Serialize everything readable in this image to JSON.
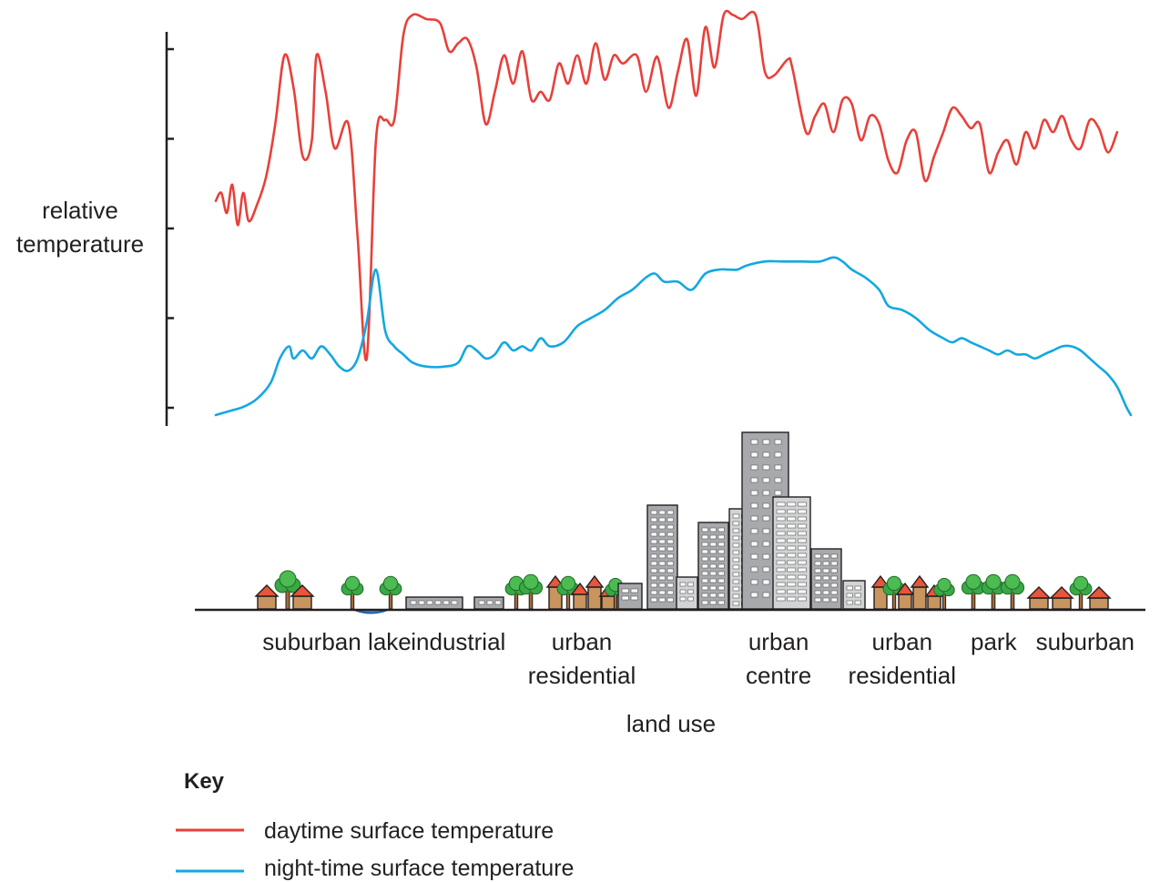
{
  "chart_data": {
    "type": "line",
    "title": "",
    "ylabel_lines": [
      "relative",
      "temperature"
    ],
    "xlabel": "land use",
    "y_axis": {
      "tick_count": 5,
      "tick_labels": "none"
    },
    "x_range": [
      0,
      100
    ],
    "y_range": [
      0,
      100
    ],
    "categories": [
      {
        "lines": [
          "suburban"
        ],
        "x": 10.5
      },
      {
        "lines": [
          "lake"
        ],
        "x": 19
      },
      {
        "lines": [
          "industrial"
        ],
        "x": 26.5
      },
      {
        "lines": [
          "urban",
          "residential"
        ],
        "x": 40
      },
      {
        "lines": [
          "urban",
          "centre"
        ],
        "x": 61.5
      },
      {
        "lines": [
          "urban",
          "residential"
        ],
        "x": 75
      },
      {
        "lines": [
          "park"
        ],
        "x": 85
      },
      {
        "lines": [
          "suburban"
        ],
        "x": 95
      }
    ],
    "series": [
      {
        "name": "daytime surface temperature",
        "color": "#e8403a",
        "points": [
          [
            0,
            53
          ],
          [
            0.6,
            55
          ],
          [
            1.2,
            50
          ],
          [
            1.8,
            57
          ],
          [
            2.4,
            47
          ],
          [
            3,
            55
          ],
          [
            3.6,
            48
          ],
          [
            4.5,
            52
          ],
          [
            5.5,
            59
          ],
          [
            6.5,
            72
          ],
          [
            7.5,
            89
          ],
          [
            8.5,
            81
          ],
          [
            9.5,
            64
          ],
          [
            10.5,
            68
          ],
          [
            11,
            89
          ],
          [
            12,
            80
          ],
          [
            13,
            66
          ],
          [
            14.5,
            72
          ],
          [
            15.5,
            44
          ],
          [
            16.5,
            14
          ],
          [
            17.5,
            68
          ],
          [
            18.5,
            73
          ],
          [
            19.5,
            73
          ],
          [
            20.5,
            94
          ],
          [
            21.5,
            99
          ],
          [
            23,
            98
          ],
          [
            24.5,
            97
          ],
          [
            25.5,
            90
          ],
          [
            26.5,
            92
          ],
          [
            27.5,
            93
          ],
          [
            28.5,
            86
          ],
          [
            29.5,
            72
          ],
          [
            30.5,
            80
          ],
          [
            31.5,
            89
          ],
          [
            32.5,
            82
          ],
          [
            33.5,
            90
          ],
          [
            34.5,
            78
          ],
          [
            35.5,
            80
          ],
          [
            36.5,
            78
          ],
          [
            37.5,
            87
          ],
          [
            38.5,
            82
          ],
          [
            39.5,
            89
          ],
          [
            40.5,
            82
          ],
          [
            41.5,
            92
          ],
          [
            42.5,
            83
          ],
          [
            43.5,
            89
          ],
          [
            44.5,
            87
          ],
          [
            46,
            89
          ],
          [
            47,
            80
          ],
          [
            48,
            88
          ],
          [
            48.5,
            87
          ],
          [
            49.5,
            76
          ],
          [
            50.5,
            85
          ],
          [
            51.5,
            93
          ],
          [
            52.5,
            79
          ],
          [
            53.5,
            96
          ],
          [
            54.5,
            86
          ],
          [
            55.5,
            99
          ],
          [
            56.5,
            99
          ],
          [
            57.5,
            98
          ],
          [
            59,
            99
          ],
          [
            60,
            85
          ],
          [
            61,
            84
          ],
          [
            62.5,
            88
          ],
          [
            63,
            86
          ],
          [
            64.5,
            70
          ],
          [
            65.5,
            74
          ],
          [
            66.5,
            77
          ],
          [
            67.5,
            70
          ],
          [
            68.5,
            78
          ],
          [
            69.5,
            77
          ],
          [
            70.5,
            68
          ],
          [
            71.5,
            74
          ],
          [
            72.5,
            72
          ],
          [
            73.5,
            63
          ],
          [
            74.5,
            60
          ],
          [
            75.5,
            68
          ],
          [
            76.5,
            70
          ],
          [
            77.5,
            58
          ],
          [
            78.5,
            64
          ],
          [
            79.5,
            70
          ],
          [
            80.5,
            76
          ],
          [
            81.5,
            74
          ],
          [
            82.5,
            71
          ],
          [
            83.5,
            72
          ],
          [
            84.5,
            60
          ],
          [
            85.5,
            65
          ],
          [
            86.5,
            68
          ],
          [
            87.5,
            62
          ],
          [
            88.5,
            70
          ],
          [
            89.5,
            66
          ],
          [
            90.5,
            73
          ],
          [
            91.5,
            70
          ],
          [
            92.5,
            74
          ],
          [
            93.5,
            68
          ],
          [
            94.5,
            66
          ],
          [
            95.5,
            73
          ],
          [
            96.5,
            71
          ],
          [
            97.5,
            65
          ],
          [
            98.5,
            70
          ]
        ]
      },
      {
        "name": "night-time surface temperature",
        "color": "#12a8e2",
        "points": [
          [
            0,
            0
          ],
          [
            1.5,
            1
          ],
          [
            3,
            2
          ],
          [
            4.5,
            4
          ],
          [
            6,
            8
          ],
          [
            7,
            14
          ],
          [
            8,
            17
          ],
          [
            8.5,
            14
          ],
          [
            9.5,
            16
          ],
          [
            10.5,
            14
          ],
          [
            11.5,
            17
          ],
          [
            12.5,
            15
          ],
          [
            13.5,
            12
          ],
          [
            14.5,
            11
          ],
          [
            15.5,
            14
          ],
          [
            16.5,
            23
          ],
          [
            17.5,
            36
          ],
          [
            18.5,
            21
          ],
          [
            19.5,
            17
          ],
          [
            20.5,
            15
          ],
          [
            21.5,
            13
          ],
          [
            23,
            12
          ],
          [
            25,
            12
          ],
          [
            26.5,
            13
          ],
          [
            27.5,
            17
          ],
          [
            28.5,
            16
          ],
          [
            29.5,
            14
          ],
          [
            30.5,
            15
          ],
          [
            31.5,
            18
          ],
          [
            32.5,
            16
          ],
          [
            33.5,
            17
          ],
          [
            34.5,
            16
          ],
          [
            35.5,
            19
          ],
          [
            36.5,
            17
          ],
          [
            38,
            18
          ],
          [
            39.5,
            22
          ],
          [
            41,
            24
          ],
          [
            42.5,
            26
          ],
          [
            44,
            29
          ],
          [
            45.5,
            31
          ],
          [
            47,
            34
          ],
          [
            48,
            35
          ],
          [
            49,
            33
          ],
          [
            50.5,
            33
          ],
          [
            52,
            31
          ],
          [
            53.5,
            35
          ],
          [
            55,
            36
          ],
          [
            56,
            36
          ],
          [
            57,
            36
          ],
          [
            58,
            37
          ],
          [
            60,
            38
          ],
          [
            62,
            38
          ],
          [
            64,
            38
          ],
          [
            66,
            38
          ],
          [
            67.5,
            39
          ],
          [
            68.5,
            38
          ],
          [
            69.5,
            36
          ],
          [
            71,
            34
          ],
          [
            72.5,
            31
          ],
          [
            73.5,
            27
          ],
          [
            75,
            26
          ],
          [
            76.5,
            24
          ],
          [
            78,
            21
          ],
          [
            79.5,
            19
          ],
          [
            80.5,
            18
          ],
          [
            81.5,
            19
          ],
          [
            82.5,
            18
          ],
          [
            83.5,
            17
          ],
          [
            84.5,
            16
          ],
          [
            85.5,
            15
          ],
          [
            86.5,
            16
          ],
          [
            87.5,
            15
          ],
          [
            88.5,
            15
          ],
          [
            89.5,
            14
          ],
          [
            90.5,
            15
          ],
          [
            91.5,
            16
          ],
          [
            92.5,
            17
          ],
          [
            93.5,
            17
          ],
          [
            94.5,
            16
          ],
          [
            95.5,
            14
          ],
          [
            96.5,
            12
          ],
          [
            97.5,
            10
          ],
          [
            98.5,
            7
          ],
          [
            99.5,
            2
          ],
          [
            100,
            0
          ]
        ]
      }
    ],
    "legend": {
      "title": "Key",
      "position": "bottom-left"
    }
  }
}
